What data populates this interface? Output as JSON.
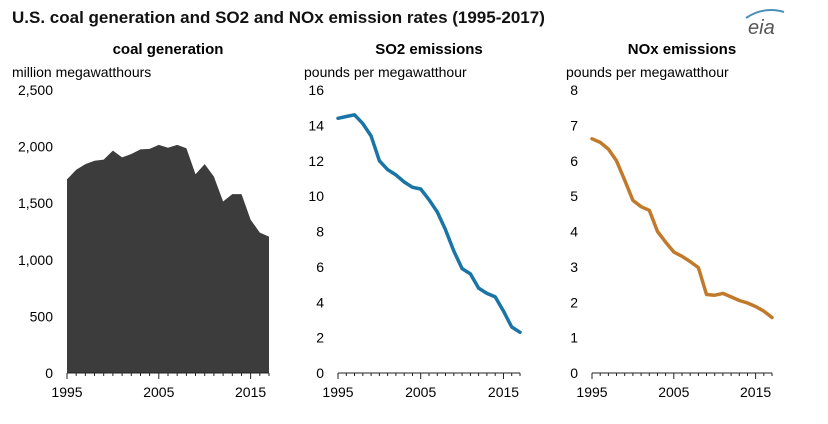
{
  "title": "U.S. coal generation and SO2 and NOx emission rates (1995-2017)",
  "logo_text": "eia",
  "colors": {
    "coal": "#3c3c3c",
    "so2": "#1a75a6",
    "nox": "#c17a2c",
    "axis": "#222222"
  },
  "chart_data": [
    {
      "type": "area",
      "title": "coal generation",
      "ylabel": "million megawatthours",
      "xlim": [
        1995,
        2017
      ],
      "ylim": [
        0,
        2500
      ],
      "xticks": [
        1995,
        2005,
        2015
      ],
      "yticks": [
        0,
        500,
        1000,
        1500,
        2000,
        2500
      ],
      "ytick_labels": [
        "0",
        "500",
        "1,000",
        "1,500",
        "2,000",
        "2,500"
      ],
      "x": [
        1995,
        1996,
        1997,
        1998,
        1999,
        2000,
        2001,
        2002,
        2003,
        2004,
        2005,
        2006,
        2007,
        2008,
        2009,
        2010,
        2011,
        2012,
        2013,
        2014,
        2015,
        2016,
        2017
      ],
      "values": [
        1710,
        1795,
        1845,
        1875,
        1885,
        1965,
        1905,
        1935,
        1975,
        1980,
        2015,
        1990,
        2015,
        1985,
        1755,
        1845,
        1735,
        1515,
        1580,
        1580,
        1355,
        1240,
        1205
      ]
    },
    {
      "type": "line",
      "title": "SO2 emissions",
      "ylabel": "pounds per megawatthour",
      "xlim": [
        1995,
        2017
      ],
      "ylim": [
        0,
        16
      ],
      "xticks": [
        1995,
        2005,
        2015
      ],
      "yticks": [
        0,
        2,
        4,
        6,
        8,
        10,
        12,
        14,
        16
      ],
      "ytick_labels": [
        "0",
        "2",
        "4",
        "6",
        "8",
        "10",
        "12",
        "14",
        "16"
      ],
      "x": [
        1995,
        1996,
        1997,
        1998,
        1999,
        2000,
        2001,
        2002,
        2003,
        2004,
        2005,
        2006,
        2007,
        2008,
        2009,
        2010,
        2011,
        2012,
        2013,
        2014,
        2015,
        2016,
        2017
      ],
      "values": [
        14.4,
        14.5,
        14.6,
        14.1,
        13.4,
        12.0,
        11.5,
        11.2,
        10.8,
        10.5,
        10.4,
        9.8,
        9.1,
        8.1,
        6.9,
        5.9,
        5.6,
        4.8,
        4.5,
        4.3,
        3.5,
        2.6,
        2.3
      ]
    },
    {
      "type": "line",
      "title": "NOx emissions",
      "ylabel": "pounds per megawatthour",
      "xlim": [
        1995,
        2017
      ],
      "ylim": [
        0,
        8
      ],
      "xticks": [
        1995,
        2005,
        2015
      ],
      "yticks": [
        0,
        1,
        2,
        3,
        4,
        5,
        6,
        7,
        8
      ],
      "ytick_labels": [
        "0",
        "1",
        "2",
        "3",
        "4",
        "5",
        "6",
        "7",
        "8"
      ],
      "x": [
        1995,
        1996,
        1997,
        1998,
        1999,
        2000,
        2001,
        2002,
        2003,
        2004,
        2005,
        2006,
        2007,
        2008,
        2009,
        2010,
        2011,
        2012,
        2013,
        2014,
        2015,
        2016,
        2017
      ],
      "values": [
        6.62,
        6.52,
        6.33,
        6.0,
        5.45,
        4.88,
        4.7,
        4.6,
        4.0,
        3.7,
        3.42,
        3.3,
        3.15,
        2.98,
        2.22,
        2.2,
        2.25,
        2.15,
        2.05,
        1.98,
        1.88,
        1.75,
        1.57
      ]
    }
  ]
}
